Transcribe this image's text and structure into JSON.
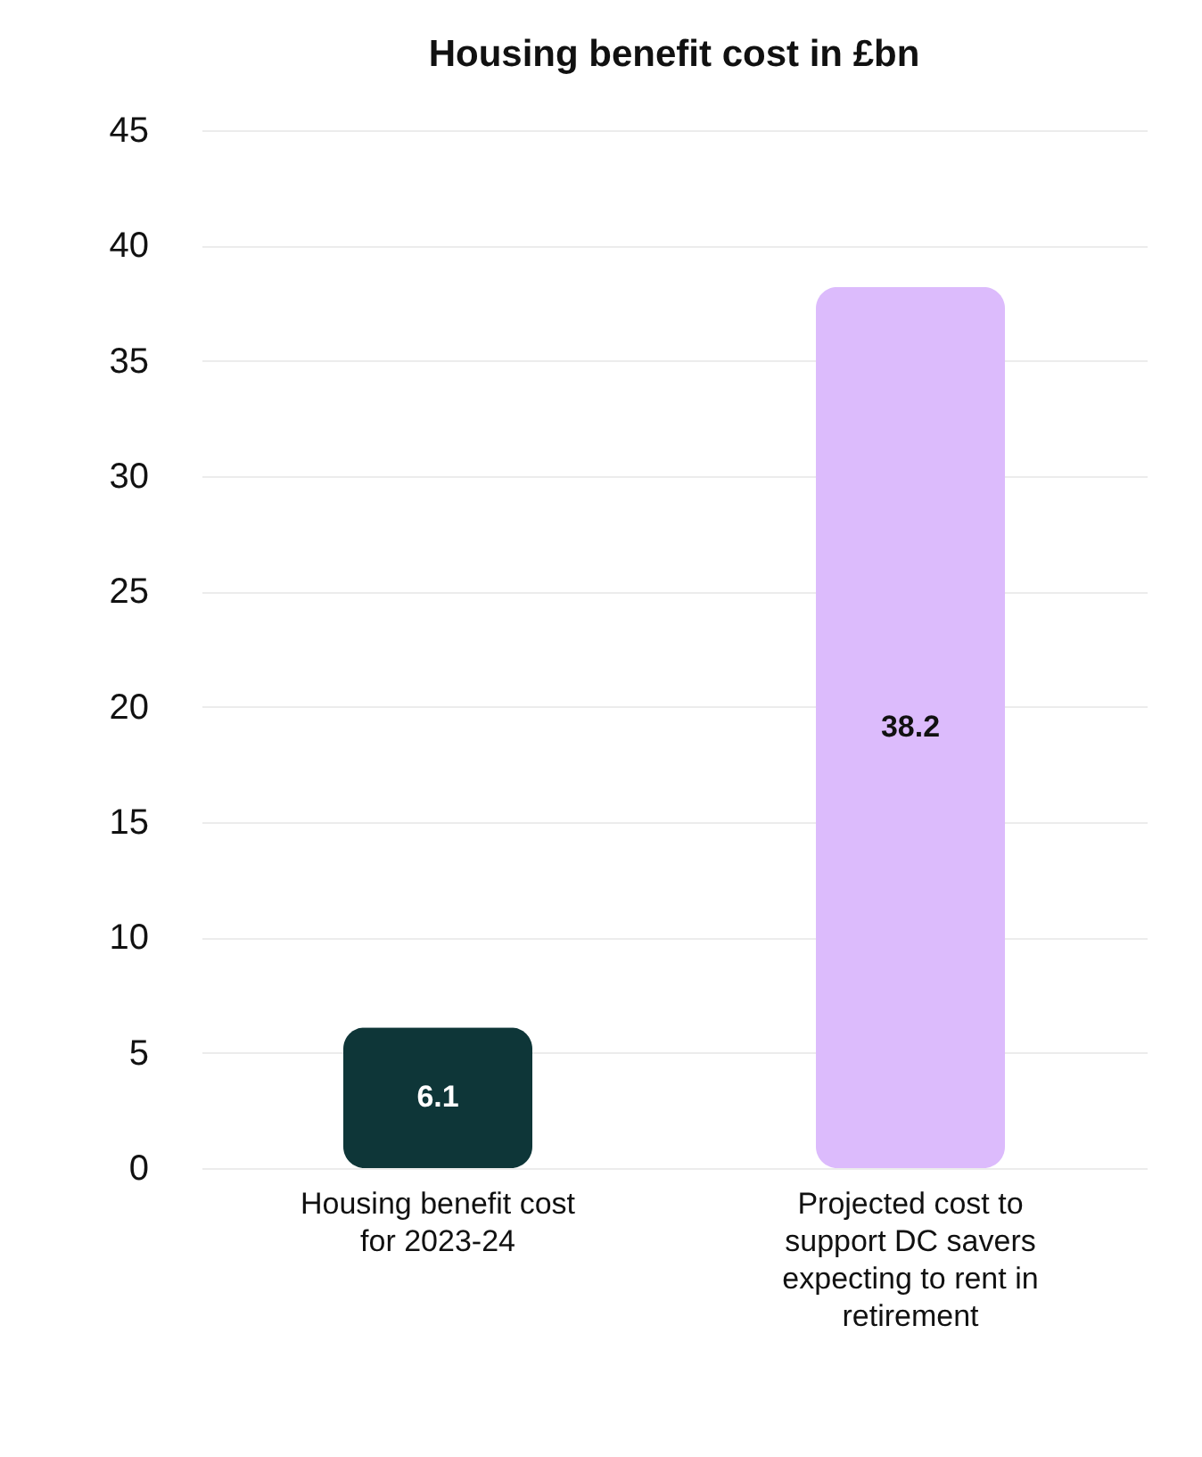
{
  "chart_data": {
    "type": "bar",
    "title": "Housing benefit cost in £bn",
    "categories": [
      "Housing benefit cost for 2023-24",
      "Projected cost to support DC savers expecting to rent in retirement"
    ],
    "values": [
      6.1,
      38.2
    ],
    "colors": [
      "#0e3638",
      "#dcbbfc"
    ],
    "ylim": [
      0,
      45
    ],
    "yticks": [
      0,
      5,
      10,
      15,
      20,
      25,
      30,
      35,
      40,
      45
    ],
    "grid": "y",
    "data_labels": true
  }
}
